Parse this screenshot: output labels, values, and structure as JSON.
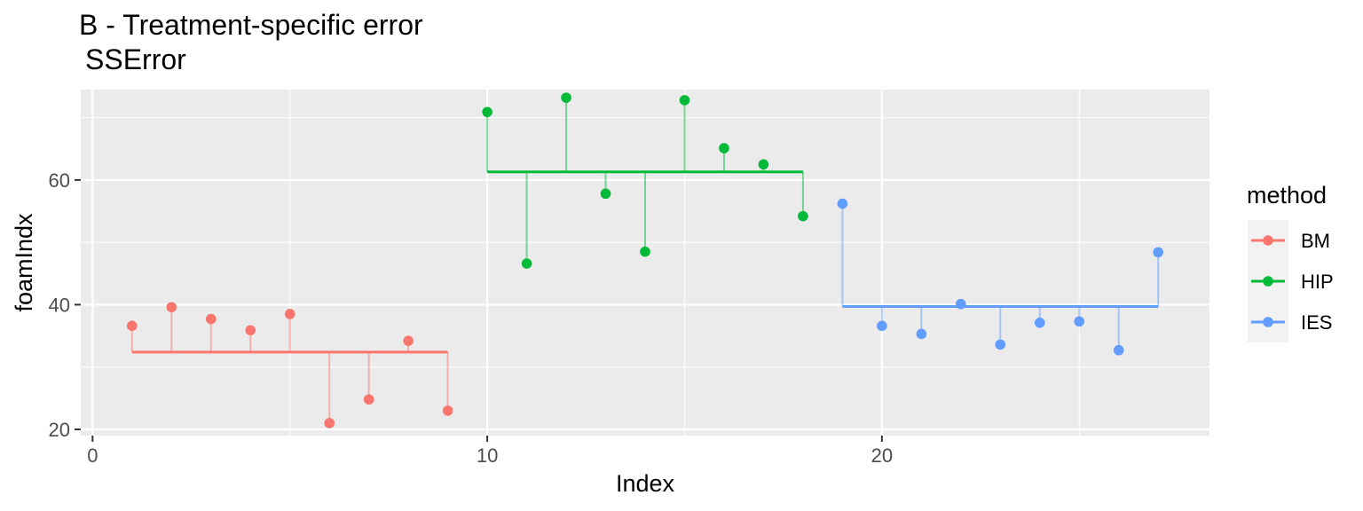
{
  "chart_data": {
    "type": "scatter",
    "title": "B - Treatment-specific error",
    "subtitle": "SSError",
    "xlabel": "Index",
    "ylabel": "foamIndx",
    "xlim": [
      -0.3,
      28.3
    ],
    "ylim": [
      19.0,
      74.5
    ],
    "x_ticks": [
      0,
      10,
      20
    ],
    "y_ticks": [
      20,
      40,
      60
    ],
    "grid": true,
    "legend": {
      "title": "method",
      "position": "right"
    },
    "series": [
      {
        "name": "BM",
        "color": "#F8766D",
        "mean": 32.4,
        "x": [
          1,
          2,
          3,
          4,
          5,
          6,
          7,
          8,
          9
        ],
        "y": [
          36.6,
          39.6,
          37.7,
          35.9,
          38.5,
          21.0,
          24.8,
          34.2,
          23.0
        ]
      },
      {
        "name": "HIP",
        "color": "#00BA38",
        "mean": 61.3,
        "x": [
          10,
          11,
          12,
          13,
          14,
          15,
          16,
          17,
          18
        ],
        "y": [
          70.9,
          46.6,
          73.2,
          57.8,
          48.5,
          72.8,
          65.1,
          62.5,
          54.2
        ]
      },
      {
        "name": "IES",
        "color": "#619CFF",
        "mean": 39.7,
        "x": [
          19,
          20,
          21,
          22,
          23,
          24,
          25,
          26,
          27
        ],
        "y": [
          56.2,
          36.6,
          35.3,
          40.1,
          33.6,
          37.1,
          37.3,
          32.7,
          48.4
        ]
      }
    ]
  }
}
